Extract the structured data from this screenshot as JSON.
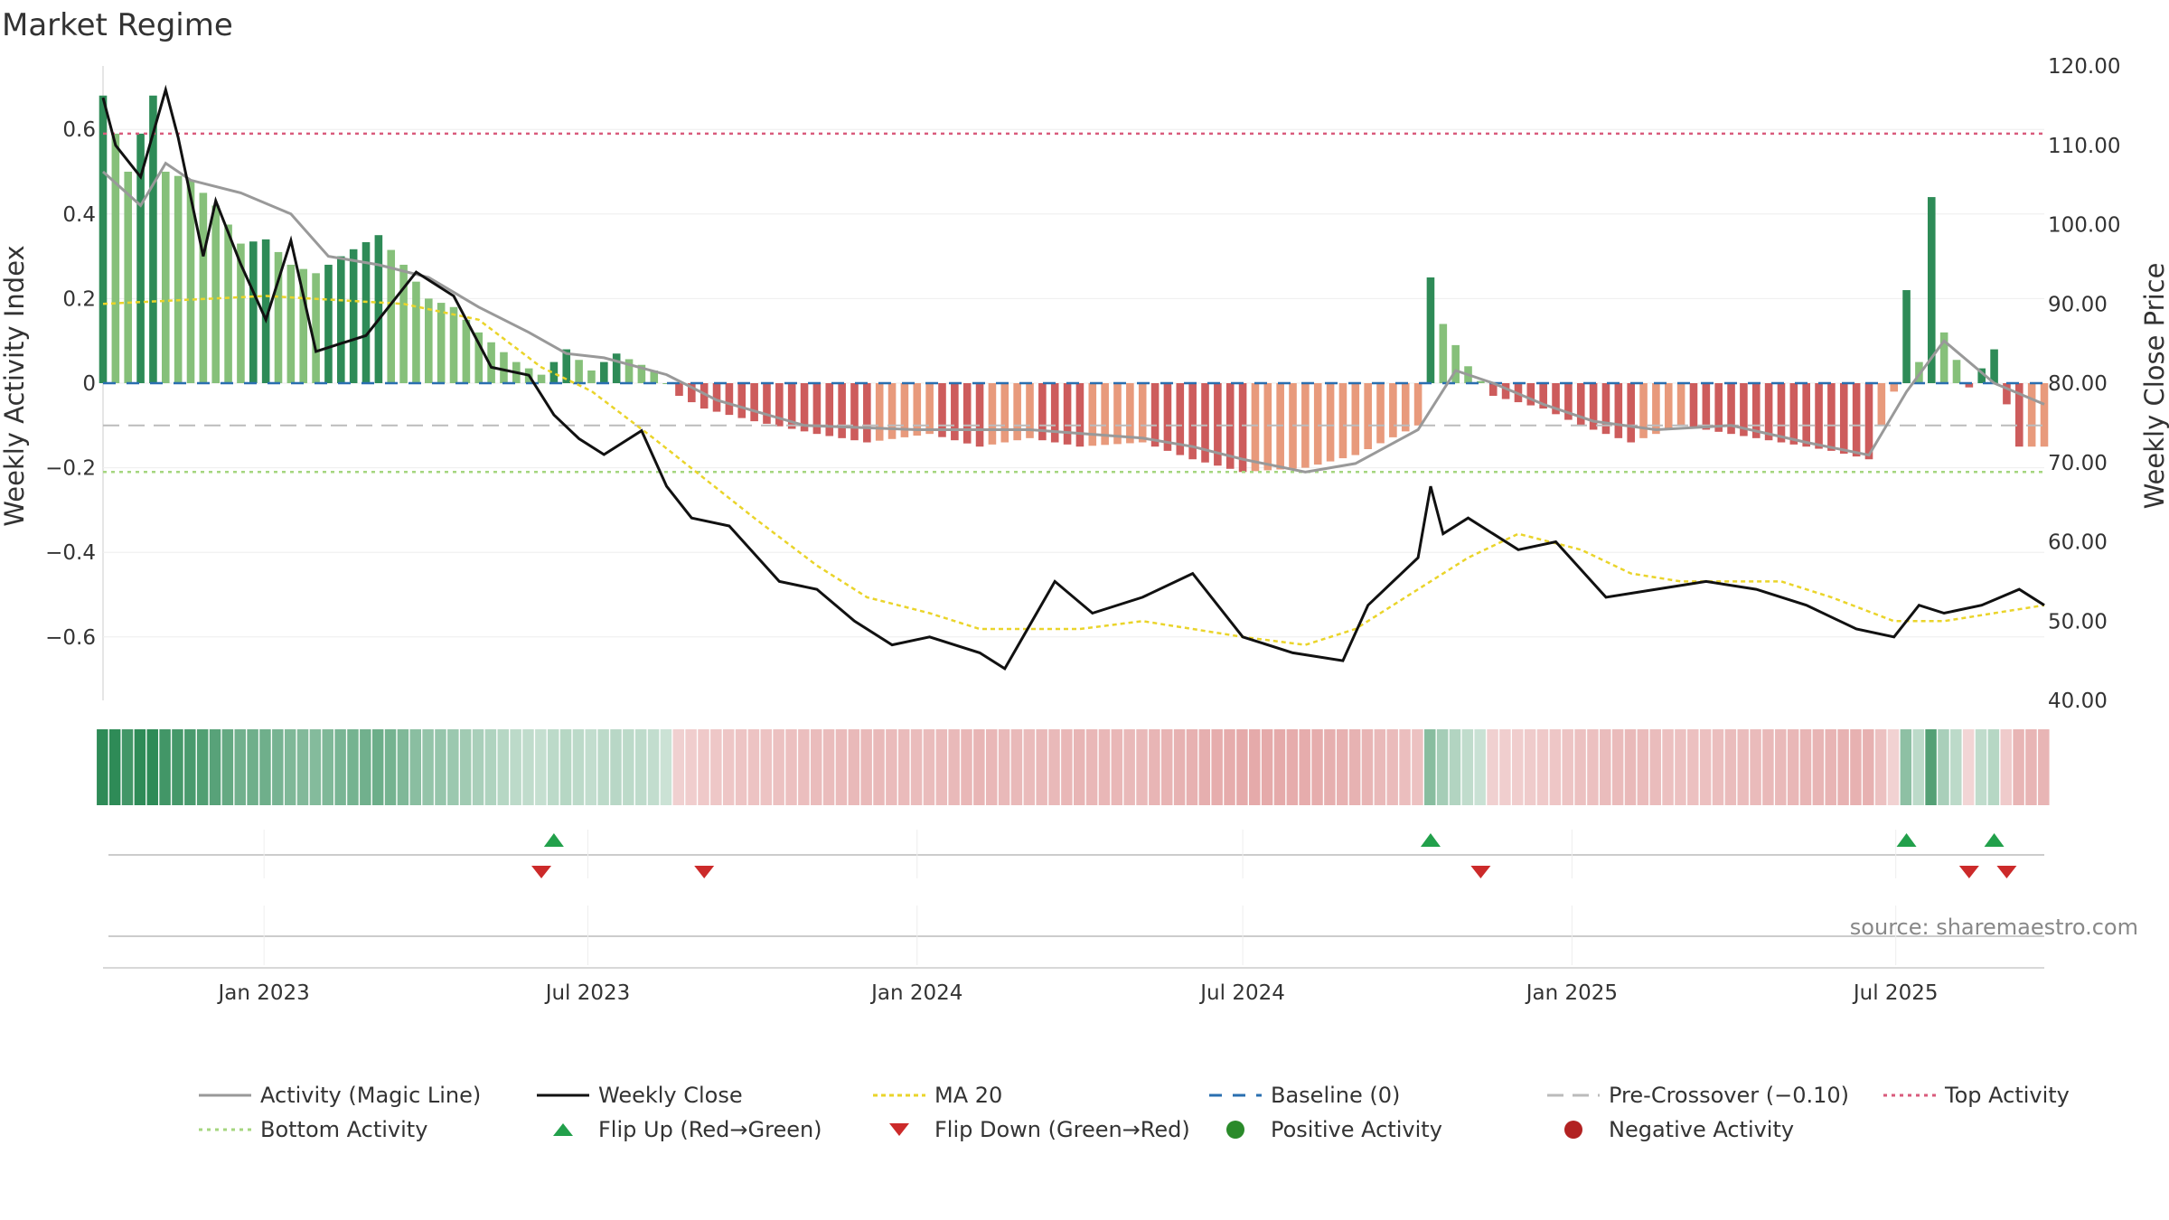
{
  "title": "Market Regime",
  "source": "source: sharemaestro.com",
  "colors": {
    "magic": "#999999",
    "close": "#111111",
    "ma": "#ead42a",
    "baseline": "#2a6fb0",
    "precross": "#bbbbbb",
    "top": "#d95b7c",
    "bottom": "#a5d67f",
    "pos_dark": "#2e8b57",
    "pos_light": "#86c07a",
    "neg_dark": "#cd5c5c",
    "neg_light": "#e89a7c",
    "flip_up": "#22a04b",
    "flip_down": "#cc2a2a",
    "pos_dot": "#2a8a2a",
    "neg_dot": "#b22222"
  },
  "legend": [
    {
      "key": "magic",
      "label": "Activity (Magic Line)"
    },
    {
      "key": "close",
      "label": "Weekly Close"
    },
    {
      "key": "ma",
      "label": "MA 20"
    },
    {
      "key": "baseline",
      "label": "Baseline (0)"
    },
    {
      "key": "precross",
      "label": "Pre-Crossover (−0.10)"
    },
    {
      "key": "top",
      "label": "Top Activity"
    },
    {
      "key": "bottom",
      "label": "Bottom Activity"
    },
    {
      "key": "flip_up",
      "label": "Flip Up (Red→Green)"
    },
    {
      "key": "flip_down",
      "label": "Flip Down (Green→Red)"
    },
    {
      "key": "pos_dot",
      "label": "Positive Activity"
    },
    {
      "key": "neg_dot",
      "label": "Negative Activity"
    }
  ],
  "chart_data": {
    "type": "bar",
    "title": "Market Regime",
    "ylabel": "Weekly Activity Index",
    "y2label": "Weekly Close Price",
    "ylim": [
      -0.75,
      0.75
    ],
    "y2lim": [
      40,
      120
    ],
    "yticks": [
      -0.6,
      -0.4,
      -0.2,
      0,
      0.2,
      0.4,
      0.6
    ],
    "ytick_labels": [
      "−0.6",
      "−0.4",
      "−0.2",
      "0",
      "0.2",
      "0.4",
      "0.6"
    ],
    "y2ticks": [
      40,
      50,
      60,
      70,
      80,
      90,
      100,
      110,
      120
    ],
    "y2tick_labels": [
      "40.00",
      "50.00",
      "60.00",
      "70.00",
      "80.00",
      "90.00",
      "100.00",
      "110.00",
      "120.00"
    ],
    "x_start": "2022-10-03",
    "x_end": "2025-09-22",
    "xtick_dates": [
      "2023-01-01",
      "2023-07-01",
      "2024-01-01",
      "2024-07-01",
      "2025-01-01",
      "2025-07-01"
    ],
    "xtick_labels": [
      "Jan 2023",
      "Jul 2023",
      "Jan 2024",
      "Jul 2024",
      "Jan 2025",
      "Jul 2025"
    ],
    "top_activity": 0.59,
    "bottom_activity": -0.21,
    "pre_crossover": -0.1,
    "baseline": 0,
    "activity_anchors": [
      [
        "2022-10-03",
        0.68
      ],
      [
        "2022-10-17",
        0.5
      ],
      [
        "2022-10-31",
        0.68
      ],
      [
        "2022-11-07",
        0.5
      ],
      [
        "2022-11-21",
        0.48
      ],
      [
        "2022-12-05",
        0.42
      ],
      [
        "2022-12-19",
        0.33
      ],
      [
        "2023-01-02",
        0.34
      ],
      [
        "2023-01-16",
        0.28
      ],
      [
        "2023-01-30",
        0.26
      ],
      [
        "2023-02-13",
        0.3
      ],
      [
        "2023-03-06",
        0.35
      ],
      [
        "2023-03-20",
        0.28
      ],
      [
        "2023-04-03",
        0.2
      ],
      [
        "2023-04-17",
        0.18
      ],
      [
        "2023-05-01",
        0.12
      ],
      [
        "2023-05-22",
        0.05
      ],
      [
        "2023-06-05",
        0.02
      ],
      [
        "2023-06-19",
        0.08
      ],
      [
        "2023-07-03",
        0.03
      ],
      [
        "2023-07-17",
        0.07
      ],
      [
        "2023-08-07",
        0.03
      ],
      [
        "2023-08-21",
        -0.03
      ],
      [
        "2023-09-04",
        -0.06
      ],
      [
        "2023-10-02",
        -0.09
      ],
      [
        "2023-11-06",
        -0.12
      ],
      [
        "2023-12-04",
        -0.14
      ],
      [
        "2024-01-08",
        -0.12
      ],
      [
        "2024-02-05",
        -0.15
      ],
      [
        "2024-03-04",
        -0.13
      ],
      [
        "2024-04-01",
        -0.15
      ],
      [
        "2024-05-06",
        -0.14
      ],
      [
        "2024-06-03",
        -0.18
      ],
      [
        "2024-07-01",
        -0.21
      ],
      [
        "2024-08-05",
        -0.2
      ],
      [
        "2024-09-02",
        -0.17
      ],
      [
        "2024-10-07",
        -0.1
      ],
      [
        "2024-10-14",
        0.25
      ],
      [
        "2024-10-21",
        0.14
      ],
      [
        "2024-11-04",
        0.04
      ],
      [
        "2024-11-18",
        -0.03
      ],
      [
        "2024-12-16",
        -0.06
      ],
      [
        "2025-01-06",
        -0.1
      ],
      [
        "2025-02-03",
        -0.14
      ],
      [
        "2025-03-03",
        -0.1
      ],
      [
        "2025-03-31",
        -0.12
      ],
      [
        "2025-04-28",
        -0.14
      ],
      [
        "2025-05-26",
        -0.16
      ],
      [
        "2025-06-16",
        -0.18
      ],
      [
        "2025-06-30",
        -0.02
      ],
      [
        "2025-07-07",
        0.22
      ],
      [
        "2025-07-14",
        0.05
      ],
      [
        "2025-07-21",
        0.44
      ],
      [
        "2025-07-28",
        0.12
      ],
      [
        "2025-08-11",
        -0.01
      ],
      [
        "2025-08-25",
        0.08
      ],
      [
        "2025-09-01",
        -0.05
      ],
      [
        "2025-09-08",
        -0.15
      ],
      [
        "2025-09-22",
        -0.15
      ]
    ],
    "magic_line": [
      [
        "2022-10-03",
        0.5
      ],
      [
        "2022-10-24",
        0.42
      ],
      [
        "2022-11-07",
        0.52
      ],
      [
        "2022-11-21",
        0.48
      ],
      [
        "2022-12-19",
        0.45
      ],
      [
        "2023-01-16",
        0.4
      ],
      [
        "2023-02-06",
        0.3
      ],
      [
        "2023-03-06",
        0.28
      ],
      [
        "2023-04-03",
        0.25
      ],
      [
        "2023-05-01",
        0.18
      ],
      [
        "2023-05-29",
        0.12
      ],
      [
        "2023-06-19",
        0.07
      ],
      [
        "2023-07-10",
        0.06
      ],
      [
        "2023-08-14",
        0.02
      ],
      [
        "2023-09-11",
        -0.04
      ],
      [
        "2023-10-30",
        -0.1
      ],
      [
        "2024-01-01",
        -0.11
      ],
      [
        "2024-03-04",
        -0.11
      ],
      [
        "2024-05-06",
        -0.13
      ],
      [
        "2024-06-03",
        -0.15
      ],
      [
        "2024-07-01",
        -0.18
      ],
      [
        "2024-08-05",
        -0.21
      ],
      [
        "2024-09-02",
        -0.19
      ],
      [
        "2024-10-07",
        -0.11
      ],
      [
        "2024-10-28",
        0.03
      ],
      [
        "2024-11-18",
        0.0
      ],
      [
        "2024-12-16",
        -0.05
      ],
      [
        "2025-01-13",
        -0.09
      ],
      [
        "2025-02-17",
        -0.11
      ],
      [
        "2025-03-31",
        -0.1
      ],
      [
        "2025-05-12",
        -0.14
      ],
      [
        "2025-06-16",
        -0.17
      ],
      [
        "2025-07-07",
        -0.02
      ],
      [
        "2025-07-28",
        0.1
      ],
      [
        "2025-08-25",
        0.0
      ],
      [
        "2025-09-22",
        -0.05
      ]
    ],
    "weekly_close": [
      [
        "2022-10-03",
        116
      ],
      [
        "2022-10-10",
        110
      ],
      [
        "2022-10-24",
        106
      ],
      [
        "2022-11-07",
        117
      ],
      [
        "2022-11-14",
        111
      ],
      [
        "2022-11-28",
        96
      ],
      [
        "2022-12-05",
        103
      ],
      [
        "2022-12-19",
        95
      ],
      [
        "2023-01-02",
        88
      ],
      [
        "2023-01-16",
        98
      ],
      [
        "2023-01-30",
        84
      ],
      [
        "2023-02-13",
        85
      ],
      [
        "2023-02-27",
        86
      ],
      [
        "2023-03-13",
        90
      ],
      [
        "2023-03-27",
        94
      ],
      [
        "2023-04-17",
        91
      ],
      [
        "2023-05-08",
        82
      ],
      [
        "2023-05-29",
        81
      ],
      [
        "2023-06-12",
        76
      ],
      [
        "2023-06-26",
        73
      ],
      [
        "2023-07-10",
        71
      ],
      [
        "2023-07-31",
        74
      ],
      [
        "2023-08-14",
        67
      ],
      [
        "2023-08-28",
        63
      ],
      [
        "2023-09-18",
        62
      ],
      [
        "2023-10-16",
        55
      ],
      [
        "2023-11-06",
        54
      ],
      [
        "2023-11-27",
        50
      ],
      [
        "2023-12-18",
        47
      ],
      [
        "2024-01-08",
        48
      ],
      [
        "2024-02-05",
        46
      ],
      [
        "2024-02-19",
        44
      ],
      [
        "2024-03-18",
        55
      ],
      [
        "2024-04-08",
        51
      ],
      [
        "2024-05-06",
        53
      ],
      [
        "2024-06-03",
        56
      ],
      [
        "2024-07-01",
        48
      ],
      [
        "2024-07-29",
        46
      ],
      [
        "2024-08-26",
        45
      ],
      [
        "2024-09-09",
        52
      ],
      [
        "2024-09-23",
        55
      ],
      [
        "2024-10-07",
        58
      ],
      [
        "2024-10-14",
        67
      ],
      [
        "2024-10-21",
        61
      ],
      [
        "2024-11-04",
        63
      ],
      [
        "2024-12-02",
        59
      ],
      [
        "2024-12-23",
        60
      ],
      [
        "2025-01-20",
        53
      ],
      [
        "2025-02-17",
        54
      ],
      [
        "2025-03-17",
        55
      ],
      [
        "2025-04-14",
        54
      ],
      [
        "2025-05-12",
        52
      ],
      [
        "2025-06-09",
        49
      ],
      [
        "2025-06-30",
        48
      ],
      [
        "2025-07-14",
        52
      ],
      [
        "2025-07-28",
        51
      ],
      [
        "2025-08-18",
        52
      ],
      [
        "2025-09-08",
        54
      ],
      [
        "2025-09-22",
        52
      ]
    ],
    "ma20": [
      [
        "2022-10-03",
        90
      ],
      [
        "2023-01-02",
        91
      ],
      [
        "2023-03-20",
        90
      ],
      [
        "2023-05-01",
        88
      ],
      [
        "2023-06-05",
        82
      ],
      [
        "2023-07-03",
        79
      ],
      [
        "2023-08-07",
        73
      ],
      [
        "2023-09-04",
        68
      ],
      [
        "2023-10-02",
        63
      ],
      [
        "2023-11-06",
        57
      ],
      [
        "2023-12-04",
        53
      ],
      [
        "2024-01-08",
        51
      ],
      [
        "2024-02-05",
        49
      ],
      [
        "2024-03-04",
        49
      ],
      [
        "2024-04-01",
        49
      ],
      [
        "2024-05-06",
        50
      ],
      [
        "2024-06-03",
        49
      ],
      [
        "2024-07-01",
        48
      ],
      [
        "2024-08-05",
        47
      ],
      [
        "2024-09-02",
        49
      ],
      [
        "2024-10-07",
        54
      ],
      [
        "2024-11-04",
        58
      ],
      [
        "2024-12-02",
        61
      ],
      [
        "2025-01-06",
        59
      ],
      [
        "2025-02-03",
        56
      ],
      [
        "2025-03-03",
        55
      ],
      [
        "2025-03-31",
        55
      ],
      [
        "2025-04-28",
        55
      ],
      [
        "2025-05-26",
        53
      ],
      [
        "2025-06-30",
        50
      ],
      [
        "2025-07-28",
        50
      ],
      [
        "2025-08-25",
        51
      ],
      [
        "2025-09-22",
        52
      ]
    ],
    "flips_up": [
      "2023-06-12",
      "2024-10-14",
      "2025-07-07",
      "2025-08-25"
    ],
    "flips_down": [
      "2023-06-05",
      "2023-09-04",
      "2024-11-11",
      "2025-08-11",
      "2025-09-01"
    ]
  }
}
